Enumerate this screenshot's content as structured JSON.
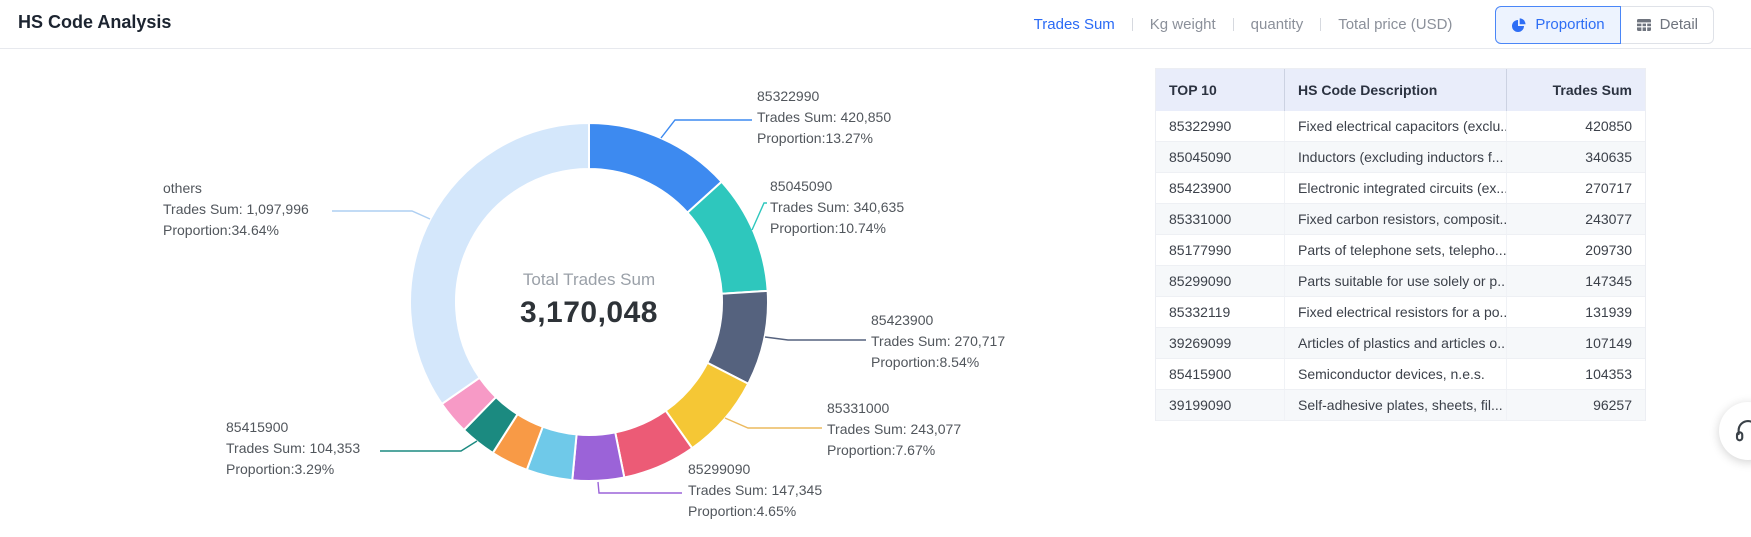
{
  "header": {
    "title": "HS Code Analysis",
    "metric_tabs": [
      {
        "label": "Trades Sum",
        "active": true
      },
      {
        "label": "Kg weight",
        "active": false
      },
      {
        "label": "quantity",
        "active": false
      },
      {
        "label": "Total price (USD)",
        "active": false
      }
    ],
    "view_buttons": [
      {
        "label": "Proportion",
        "icon": "pie-chart-icon",
        "active": true
      },
      {
        "label": "Detail",
        "icon": "table-icon",
        "active": false
      }
    ]
  },
  "chart_data": {
    "type": "pie",
    "subtype": "donut",
    "center_label": "Total Trades Sum",
    "center_value": "3,170,048",
    "total": 3170048,
    "legend_position": "none",
    "slices": [
      {
        "name": "85322990",
        "value": 420850,
        "proportion": 13.27,
        "color": "#3d8af0"
      },
      {
        "name": "85045090",
        "value": 340635,
        "proportion": 10.74,
        "color": "#2ec7bd"
      },
      {
        "name": "85423900",
        "value": 270717,
        "proportion": 8.54,
        "color": "#55627e"
      },
      {
        "name": "85331000",
        "value": 243077,
        "proportion": 7.67,
        "color": "#f5c735"
      },
      {
        "name": "85177990",
        "value": 209730,
        "proportion": 6.62,
        "color": "#ec5b76"
      },
      {
        "name": "85299090",
        "value": 147345,
        "proportion": 4.65,
        "color": "#9b63d8"
      },
      {
        "name": "85332119",
        "value": 131939,
        "proportion": 4.16,
        "color": "#6fc9e9"
      },
      {
        "name": "39269099",
        "value": 107149,
        "proportion": 3.38,
        "color": "#f89a46"
      },
      {
        "name": "85415900",
        "value": 104353,
        "proportion": 3.29,
        "color": "#1b8a80"
      },
      {
        "name": "39199090",
        "value": 96257,
        "proportion": 3.04,
        "color": "#f79ac6"
      },
      {
        "name": "others",
        "value": 1097996,
        "proportion": 34.64,
        "color": "#d4e7fb"
      }
    ],
    "callouts": [
      {
        "name": "85322990",
        "sum_line": "Trades Sum: 420,850",
        "prop_line": "Proportion:13.27%",
        "color": "#3d8af0"
      },
      {
        "name": "85045090",
        "sum_line": "Trades Sum: 340,635",
        "prop_line": "Proportion:10.74%",
        "color": "#2ec7bd"
      },
      {
        "name": "85423900",
        "sum_line": "Trades Sum: 270,717",
        "prop_line": "Proportion:8.54%",
        "color": "#55627e"
      },
      {
        "name": "85331000",
        "sum_line": "Trades Sum: 243,077",
        "prop_line": "Proportion:7.67%",
        "color": "#ecba5f"
      },
      {
        "name": "85299090",
        "sum_line": "Trades Sum: 147,345",
        "prop_line": "Proportion:4.65%",
        "color": "#9b63d8"
      },
      {
        "name": "85415900",
        "sum_line": "Trades Sum: 104,353",
        "prop_line": "Proportion:3.29%",
        "color": "#1b8a80"
      },
      {
        "name": "others",
        "sum_line": "Trades Sum: 1,097,996",
        "prop_line": "Proportion:34.64%",
        "color": "#aecff2"
      }
    ]
  },
  "table": {
    "columns": [
      "TOP 10",
      "HS Code Description",
      "Trades Sum"
    ],
    "rows": [
      {
        "code": "85322990",
        "description": "Fixed electrical capacitors (exclu...",
        "value": 420850
      },
      {
        "code": "85045090",
        "description": "Inductors (excluding inductors f...",
        "value": 340635
      },
      {
        "code": "85423900",
        "description": "Electronic integrated circuits (ex...",
        "value": 270717
      },
      {
        "code": "85331000",
        "description": "Fixed carbon resistors, composit...",
        "value": 243077
      },
      {
        "code": "85177990",
        "description": "Parts of telephone sets, telepho...",
        "value": 209730
      },
      {
        "code": "85299090",
        "description": "Parts suitable for use solely or p...",
        "value": 147345
      },
      {
        "code": "85332119",
        "description": "Fixed electrical resistors for a po...",
        "value": 131939
      },
      {
        "code": "39269099",
        "description": "Articles of plastics and articles o...",
        "value": 107149
      },
      {
        "code": "85415900",
        "description": "Semiconductor devices, n.e.s.",
        "value": 104353
      },
      {
        "code": "39199090",
        "description": "Self-adhesive plates, sheets, fil...",
        "value": 96257
      }
    ]
  },
  "floating": {
    "support_icon": "headset-icon"
  }
}
